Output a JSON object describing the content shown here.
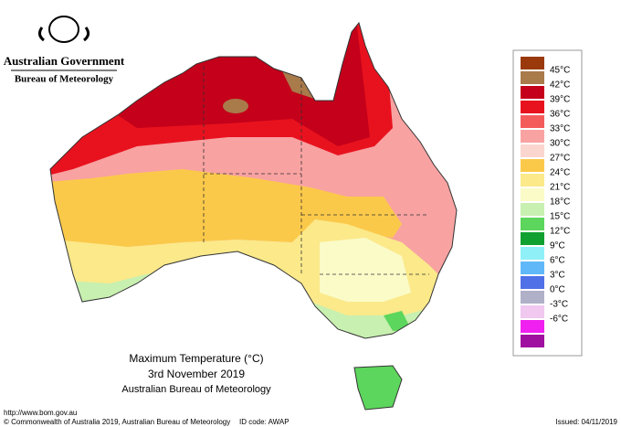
{
  "header": {
    "government": "Australian Government",
    "bureau": "Bureau of Meteorology"
  },
  "title": {
    "line1": "Maximum Temperature (°C)",
    "line2": "3rd November 2019",
    "line3": "Australian Bureau of Meteorology"
  },
  "legend": {
    "colors": [
      "#9a3a0c",
      "#a97a4a",
      "#c4001a",
      "#e8121e",
      "#f45c5c",
      "#f8a2a2",
      "#fbd6cf",
      "#fbc94a",
      "#fbe98a",
      "#fbfbc8",
      "#c8f0b0",
      "#5cd65c",
      "#10a030",
      "#90f0f8",
      "#60b8f8",
      "#5070e8",
      "#b0b0c8",
      "#f0c8f0",
      "#f020f0",
      "#a010a0"
    ],
    "labels": [
      "45°C",
      "42°C",
      "39°C",
      "36°C",
      "33°C",
      "30°C",
      "27°C",
      "24°C",
      "21°C",
      "18°C",
      "15°C",
      "12°C",
      "9°C",
      "6°C",
      "3°C",
      "0°C",
      "-3°C",
      "-6°C"
    ]
  },
  "footer": {
    "url": "http://www.bom.gov.au",
    "copyright": "© Commonwealth of Australia 2019, Australian Bureau of Meteorology",
    "id_code": "ID code: AWAP",
    "issued": "Issued: 04/11/2019"
  }
}
